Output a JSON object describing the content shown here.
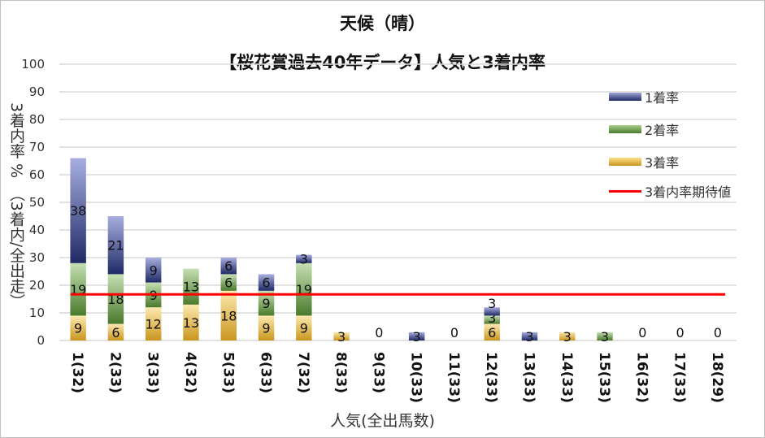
{
  "chart_data": {
    "type": "bar",
    "stacked": true,
    "title": "天候（晴）",
    "subtitle": "【桜花賞過去40年データ】人気と3着内率",
    "xlabel": "人気(全出馬数)",
    "ylabel": "3着内率 %　（3着内/全出走）",
    "ylim": [
      0,
      100
    ],
    "yticks": [
      0,
      10,
      20,
      30,
      40,
      50,
      60,
      70,
      80,
      90,
      100
    ],
    "grid": true,
    "legend_position": "right",
    "categories": [
      "1(32)",
      "2(33)",
      "3(33)",
      "4(32)",
      "5(33)",
      "6(33)",
      "7(32)",
      "8(33)",
      "9(33)",
      "10(33)",
      "11(33)",
      "12(33)",
      "13(33)",
      "14(33)",
      "15(33)",
      "16(32)",
      "17(33)",
      "18(29)"
    ],
    "series": [
      {
        "name": "3着率",
        "color": "#e8c77a",
        "values": [
          9,
          6,
          12,
          13,
          18,
          9,
          9,
          3,
          0,
          0,
          0,
          6,
          0,
          3,
          0,
          0,
          0,
          0
        ]
      },
      {
        "name": "2着率",
        "color": "#70a84e",
        "values": [
          19,
          18,
          9,
          13,
          6,
          9,
          19,
          0,
          0,
          0,
          0,
          3,
          0,
          0,
          3,
          0,
          0,
          0
        ]
      },
      {
        "name": "1着率",
        "color": "#4a5aa8",
        "values": [
          38,
          21,
          9,
          0,
          6,
          6,
          3,
          0,
          0,
          3,
          0,
          3,
          3,
          0,
          0,
          0,
          0,
          0
        ]
      }
    ],
    "reference_line": {
      "name": "3着内率期待値",
      "value": 16.7,
      "color": "#ff0000"
    }
  }
}
